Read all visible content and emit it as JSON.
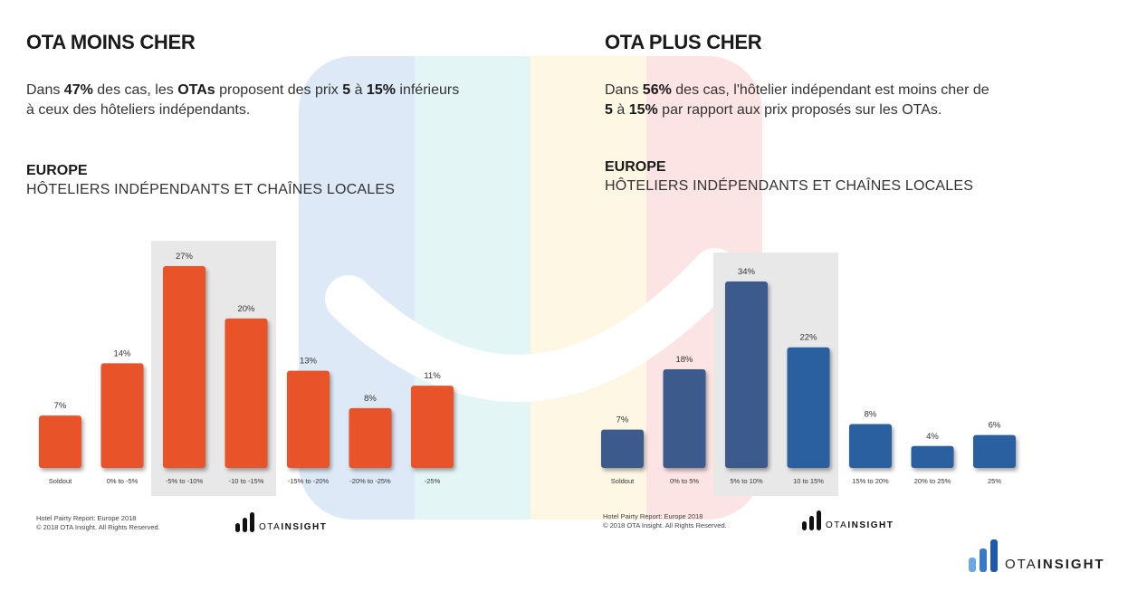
{
  "left": {
    "title": "OTA MOINS CHER",
    "desc": {
      "p1": "Dans ",
      "n1": "47%",
      "p2": " des cas, les ",
      "n2": "OTAs",
      "p3": " proposent des prix ",
      "n3": "5",
      "p4": " à ",
      "n4": "15%",
      "p5": " inférieurs",
      "line2": "à ceux des hôteliers indépendants."
    },
    "region": "EUROPE",
    "subtitle": "HÔTELIERS INDÉPENDANTS ET CHAÎNES LOCALES",
    "footer_line1": "Hotel Pairty Report: Europe 2018",
    "footer_line2": "© 2018 OTA Insight. All Rights Reserved."
  },
  "right": {
    "title": "OTA PLUS CHER",
    "desc": {
      "p1": "Dans ",
      "n1": "56%",
      "p2": " des cas, l'hôtelier indépendant est moins cher de",
      "n2": "5",
      "p3": " à ",
      "n3": "15%",
      "p4": " par rapport aux prix proposés sur les OTAs."
    },
    "region": "EUROPE",
    "subtitle": "HÔTELIERS INDÉPENDANTS ET CHAÎNES LOCALES",
    "footer_line1": "Hotel Pairty Report: Europe 2018",
    "footer_line2": "© 2018 OTA Insight. All Rights Reserved."
  },
  "logo": {
    "part1": "OTA",
    "part2": "INSIGHT"
  },
  "colors": {
    "orange": "#e8532a",
    "blue_dark": "#3c5a8c",
    "blue": "#2a5fa0"
  },
  "chart_data": [
    {
      "type": "bar",
      "title": "OTA MOINS CHER",
      "categories": [
        "Soldout",
        "0% to -5%",
        "-5% to -10%",
        "-10 to -15%",
        "-15% to -20%",
        "-20% to -25%",
        "-25%"
      ],
      "values": [
        7,
        14,
        27,
        20,
        13,
        8,
        11
      ],
      "labels": [
        "7%",
        "14%",
        "27%",
        "20%",
        "13%",
        "8%",
        "11%"
      ],
      "highlighted": [
        "-5% to -10%",
        "-10 to -15%"
      ],
      "ylim": [
        0,
        27
      ]
    },
    {
      "type": "bar",
      "title": "OTA PLUS CHER",
      "categories": [
        "Soldout",
        "0% to 5%",
        "5% to 10%",
        "10 to 15%",
        "15% to 20%",
        "20% to 25%",
        "25%"
      ],
      "values": [
        7,
        18,
        34,
        22,
        8,
        4,
        6
      ],
      "labels": [
        "7%",
        "18%",
        "34%",
        "22%",
        "8%",
        "4%",
        "6%"
      ],
      "highlighted": [
        "5% to 10%"
      ],
      "ylim": [
        0,
        34
      ]
    }
  ]
}
